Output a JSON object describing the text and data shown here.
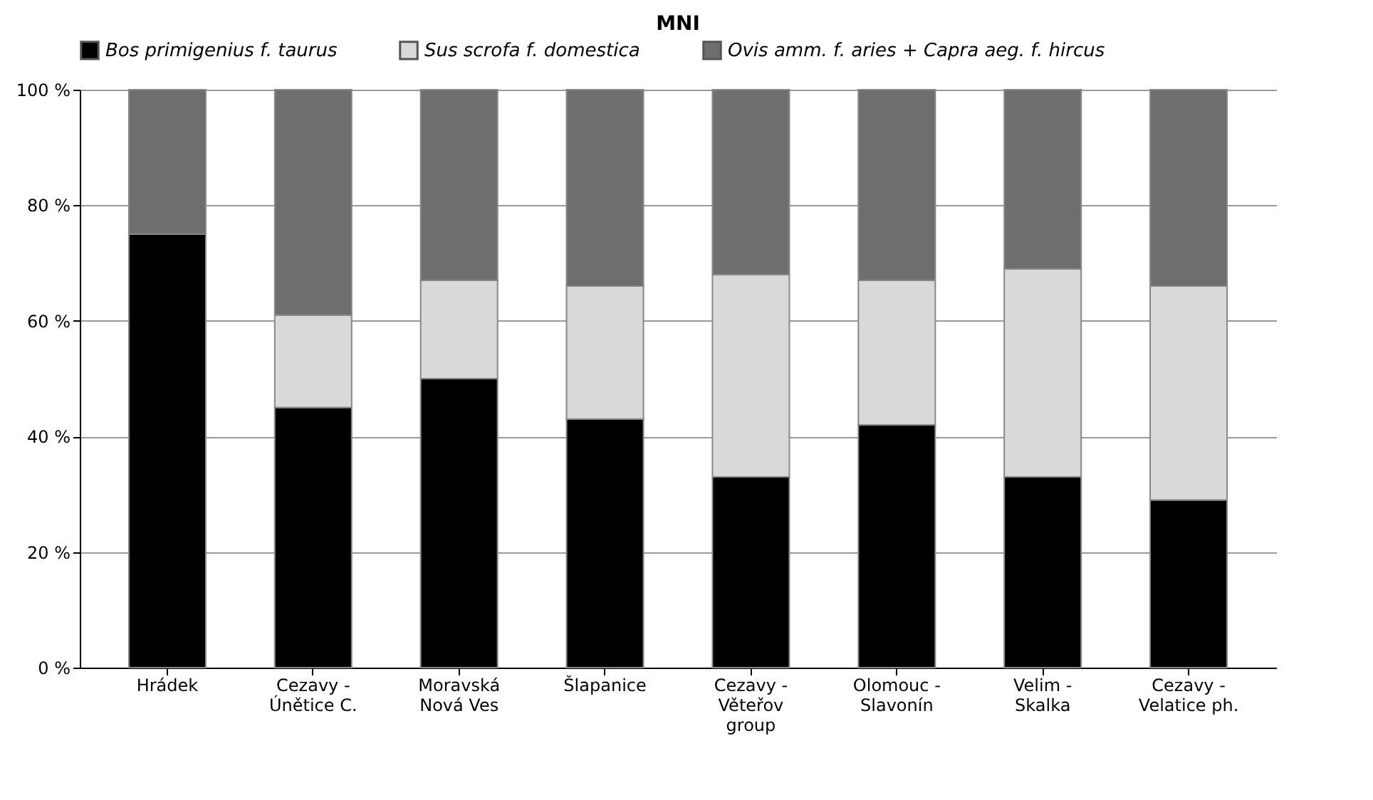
{
  "chart_data": {
    "type": "bar",
    "title": "MNI",
    "stacked": true,
    "categories": [
      "Hrádek",
      "Cezavy - Únětice C.",
      "Moravská Nová Ves",
      "Šlapanice",
      "Cezavy - Věteřov group",
      "Olomouc - Slavonín",
      "Velim - Skalka",
      "Cezavy - Velatice ph."
    ],
    "series": [
      {
        "name": "Bos primigenius f. taurus",
        "color": "#000000",
        "values": [
          75,
          45,
          50,
          43,
          33,
          42,
          33,
          29
        ]
      },
      {
        "name": "Sus scrofa f. domestica",
        "color": "#d9d9d9",
        "values": [
          0,
          16,
          17,
          23,
          35,
          25,
          36,
          37
        ]
      },
      {
        "name": "Ovis amm. f. aries + Capra aeg. f. hircus",
        "color": "#6e6e6e",
        "values": [
          25,
          39,
          33,
          34,
          32,
          33,
          31,
          34
        ]
      }
    ],
    "ylim": [
      0,
      100
    ],
    "yticks": [
      {
        "value": 0,
        "label": "0 %"
      },
      {
        "value": 20,
        "label": "20 %"
      },
      {
        "value": 40,
        "label": "40 %"
      },
      {
        "value": 60,
        "label": "60 %"
      },
      {
        "value": 80,
        "label": "80 %"
      },
      {
        "value": 100,
        "label": "100 %"
      }
    ],
    "grid": "y",
    "legend": "top"
  }
}
